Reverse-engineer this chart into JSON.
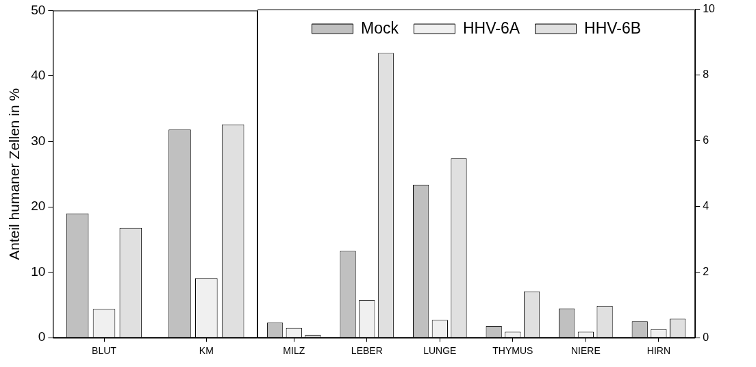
{
  "chart_data": [
    {
      "type": "bar",
      "ylabel": "Anteil humaner Zellen in %",
      "categories": [
        "BLUT",
        "KM"
      ],
      "ylim": [
        0,
        50
      ],
      "yticks": [
        0,
        10,
        20,
        30,
        40,
        50
      ],
      "grid": false,
      "legend": false,
      "series": [
        {
          "color": "#c0c0c0",
          "values": [
            19.0,
            31.8
          ]
        },
        {
          "color": "#f0f0f0",
          "values": [
            4.4,
            9.1
          ]
        },
        {
          "color": "#e0e0e0",
          "values": [
            16.8,
            32.6
          ]
        }
      ]
    },
    {
      "type": "bar",
      "categories": [
        "MILZ",
        "LEBER",
        "LUNGE",
        "THYMUS",
        "NIERE",
        "HIRN"
      ],
      "y2lim": [
        0,
        10
      ],
      "y2ticks": [
        0,
        2,
        4,
        6,
        8,
        10
      ],
      "grid": false,
      "legend": "top",
      "series": [
        {
          "name": "Mock",
          "color": "#c0c0c0",
          "axis": "y2",
          "values": [
            0.46,
            2.64,
            4.66,
            0.36,
            0.89,
            0.5
          ]
        },
        {
          "name": "HHV-6A",
          "color": "#f0f0f0",
          "axis": "y2",
          "values": [
            0.3,
            1.15,
            0.54,
            0.18,
            0.18,
            0.26
          ]
        },
        {
          "name": "HHV-6B",
          "color": "#e0e0e0",
          "axis": "y2",
          "values": [
            0.09,
            8.67,
            5.46,
            1.41,
            0.97,
            0.58
          ]
        }
      ]
    }
  ]
}
